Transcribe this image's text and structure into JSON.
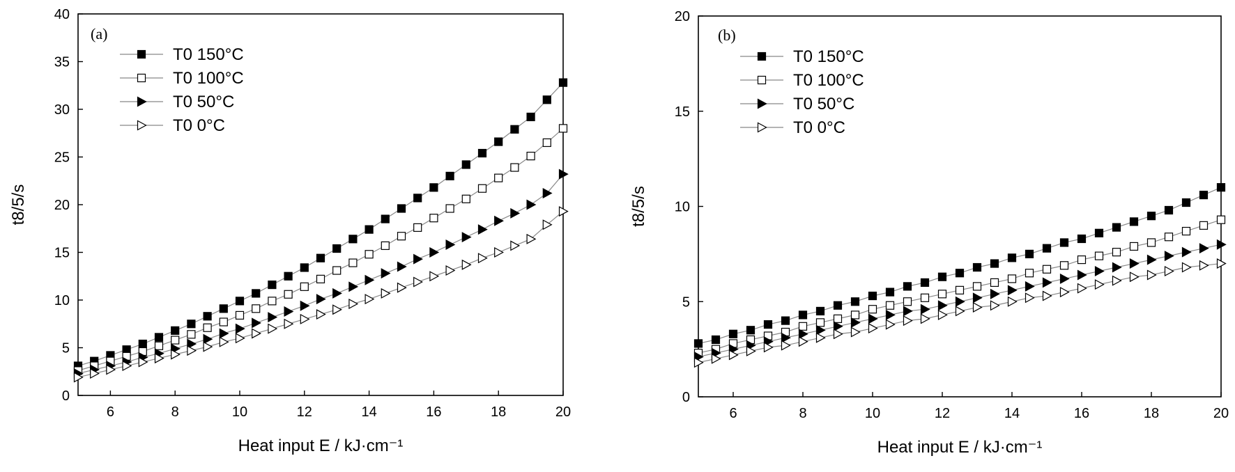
{
  "chart_data": [
    {
      "type": "line",
      "panel_label": "(a)",
      "xlabel": "Heat input E / kJ·cm⁻¹",
      "ylabel": "t8/5/s",
      "xlim": [
        5,
        20
      ],
      "ylim": [
        0,
        40
      ],
      "xticks": [
        6,
        8,
        10,
        12,
        14,
        16,
        18,
        20
      ],
      "yticks": [
        0,
        5,
        10,
        15,
        20,
        25,
        30,
        35,
        40
      ],
      "grid": false,
      "legend_position": "top-left",
      "x": [
        5.0,
        5.5,
        6.0,
        6.5,
        7.0,
        7.5,
        8.0,
        8.5,
        9.0,
        9.5,
        10.0,
        10.5,
        11.0,
        11.5,
        12.0,
        12.5,
        13.0,
        13.5,
        14.0,
        14.5,
        15.0,
        15.5,
        16.0,
        16.5,
        17.0,
        17.5,
        18.0,
        18.5,
        19.0,
        19.5,
        20.0
      ],
      "series": [
        {
          "name": "T0 150°C",
          "marker": "filled-square",
          "values": [
            3.1,
            3.6,
            4.2,
            4.8,
            5.4,
            6.1,
            6.8,
            7.5,
            8.3,
            9.1,
            9.9,
            10.7,
            11.6,
            12.5,
            13.4,
            14.4,
            15.4,
            16.4,
            17.4,
            18.5,
            19.6,
            20.7,
            21.8,
            23.0,
            24.2,
            25.4,
            26.6,
            27.9,
            29.2,
            31.0,
            32.8
          ]
        },
        {
          "name": "T0 100°C",
          "marker": "open-square",
          "values": [
            2.6,
            3.1,
            3.6,
            4.1,
            4.6,
            5.2,
            5.8,
            6.4,
            7.1,
            7.7,
            8.4,
            9.1,
            9.9,
            10.6,
            11.4,
            12.2,
            13.1,
            13.9,
            14.8,
            15.7,
            16.7,
            17.6,
            18.6,
            19.6,
            20.6,
            21.7,
            22.8,
            23.9,
            25.1,
            26.5,
            28.0
          ]
        },
        {
          "name": "T0 50°C",
          "marker": "filled-triangle",
          "values": [
            2.3,
            2.7,
            3.1,
            3.5,
            4.0,
            4.4,
            4.9,
            5.4,
            5.9,
            6.5,
            7.0,
            7.6,
            8.2,
            8.8,
            9.4,
            10.1,
            10.7,
            11.4,
            12.1,
            12.8,
            13.5,
            14.3,
            15.0,
            15.8,
            16.6,
            17.4,
            18.3,
            19.1,
            20.0,
            21.2,
            23.2
          ]
        },
        {
          "name": "T0 0°C",
          "marker": "open-triangle",
          "values": [
            1.9,
            2.3,
            2.7,
            3.1,
            3.5,
            3.9,
            4.3,
            4.7,
            5.1,
            5.6,
            6.0,
            6.5,
            7.0,
            7.5,
            8.0,
            8.5,
            9.0,
            9.6,
            10.1,
            10.7,
            11.3,
            11.9,
            12.5,
            13.1,
            13.7,
            14.4,
            15.0,
            15.7,
            16.4,
            17.9,
            19.3
          ]
        }
      ]
    },
    {
      "type": "line",
      "panel_label": "(b)",
      "xlabel": "Heat input E / kJ·cm⁻¹",
      "ylabel": "t8/5/s",
      "xlim": [
        5,
        20
      ],
      "ylim": [
        0,
        20
      ],
      "xticks": [
        6,
        8,
        10,
        12,
        14,
        16,
        18,
        20
      ],
      "yticks": [
        0,
        5,
        10,
        15,
        20
      ],
      "grid": false,
      "legend_position": "top-left",
      "x": [
        5.0,
        5.5,
        6.0,
        6.5,
        7.0,
        7.5,
        8.0,
        8.5,
        9.0,
        9.5,
        10.0,
        10.5,
        11.0,
        11.5,
        12.0,
        12.5,
        13.0,
        13.5,
        14.0,
        14.5,
        15.0,
        15.5,
        16.0,
        16.5,
        17.0,
        17.5,
        18.0,
        18.5,
        19.0,
        19.5,
        20.0
      ],
      "series": [
        {
          "name": "T0 150°C",
          "marker": "filled-square",
          "values": [
            2.8,
            3.0,
            3.3,
            3.5,
            3.8,
            4.0,
            4.3,
            4.5,
            4.8,
            5.0,
            5.3,
            5.5,
            5.8,
            6.0,
            6.3,
            6.5,
            6.8,
            7.0,
            7.3,
            7.5,
            7.8,
            8.1,
            8.3,
            8.6,
            8.9,
            9.2,
            9.5,
            9.8,
            10.2,
            10.6,
            11.0
          ]
        },
        {
          "name": "T0 100°C",
          "marker": "open-square",
          "values": [
            2.3,
            2.5,
            2.8,
            3.0,
            3.2,
            3.4,
            3.7,
            3.9,
            4.1,
            4.3,
            4.6,
            4.8,
            5.0,
            5.2,
            5.4,
            5.6,
            5.8,
            6.0,
            6.2,
            6.5,
            6.7,
            6.9,
            7.2,
            7.4,
            7.6,
            7.9,
            8.1,
            8.4,
            8.7,
            9.0,
            9.3
          ]
        },
        {
          "name": "T0 50°C",
          "marker": "filled-triangle",
          "values": [
            2.1,
            2.3,
            2.5,
            2.7,
            2.9,
            3.1,
            3.3,
            3.5,
            3.7,
            3.9,
            4.1,
            4.3,
            4.5,
            4.6,
            4.8,
            5.0,
            5.2,
            5.4,
            5.6,
            5.8,
            6.0,
            6.2,
            6.4,
            6.6,
            6.8,
            7.0,
            7.2,
            7.4,
            7.6,
            7.8,
            8.0
          ]
        },
        {
          "name": "T0 0°C",
          "marker": "open-triangle",
          "values": [
            1.8,
            2.0,
            2.2,
            2.4,
            2.6,
            2.7,
            2.9,
            3.1,
            3.3,
            3.4,
            3.6,
            3.8,
            4.0,
            4.1,
            4.3,
            4.5,
            4.7,
            4.8,
            5.0,
            5.2,
            5.3,
            5.5,
            5.7,
            5.9,
            6.1,
            6.3,
            6.4,
            6.6,
            6.8,
            6.9,
            7.0
          ]
        }
      ]
    }
  ]
}
